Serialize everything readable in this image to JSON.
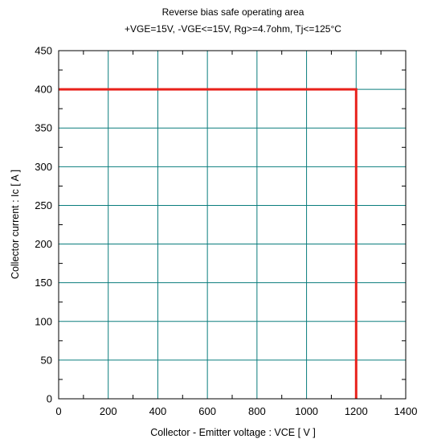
{
  "chart_data": {
    "type": "line",
    "title": "Reverse bias safe operating area",
    "subtitle": "+VGE=15V, -VGE<=15V, Rg>=4.7ohm, Tj<=125°C",
    "xlabel": "Collector - Emitter voltage  :  VCE  [ V ]",
    "ylabel": "Collector current  : Ic  [ A ]",
    "xlim": [
      0,
      1400
    ],
    "ylim": [
      0,
      450
    ],
    "xticks": [
      0,
      200,
      400,
      600,
      800,
      1000,
      1200,
      1400
    ],
    "yticks": [
      0,
      50,
      100,
      150,
      200,
      250,
      300,
      350,
      400,
      450
    ],
    "grid": true,
    "series": [
      {
        "x": [
          0,
          1200,
          1200
        ],
        "y": [
          400,
          400,
          0
        ],
        "color": "#e8211b"
      }
    ]
  },
  "colors": {
    "grid": "#0a7d7d",
    "frame": "#000000"
  }
}
